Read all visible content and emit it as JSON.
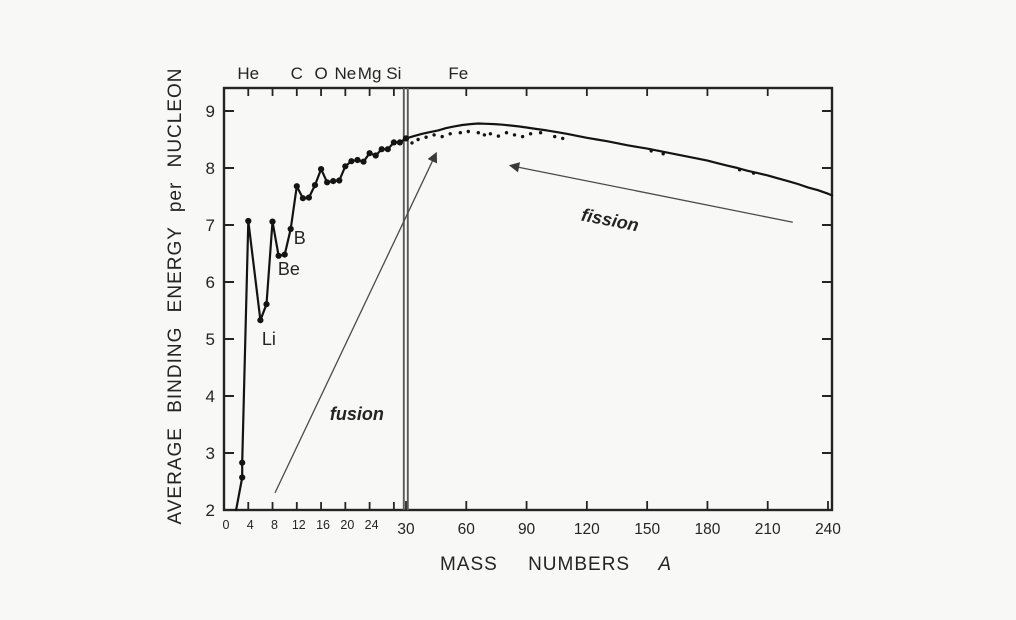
{
  "figure": {
    "background": "#f8f8f6",
    "ink": "#242424",
    "curve_color": "#141414",
    "arrow_color": "#4a4a4a",
    "break_line_color": "#5a5a5a"
  },
  "chart_data": {
    "type": "line",
    "title": "",
    "xlabel": "MASS NUMBERS A",
    "xlabel_words": {
      "w1": "MASS",
      "w2": "NUMBERS",
      "w3": "A"
    },
    "ylabel": "AVERAGE BINDING ENERGY per NUCLEON",
    "x_axis": {
      "scale": "segmented",
      "break_at": 30,
      "range": [
        0,
        240
      ],
      "left_segment": {
        "range": [
          0,
          30
        ],
        "labeled_ticks": [
          0,
          4,
          8,
          12,
          16,
          20,
          24
        ],
        "unlabeled_ticks": [
          28
        ]
      },
      "right_segment": {
        "range": [
          30,
          240
        ],
        "labeled_ticks": [
          30,
          60,
          90,
          120,
          150,
          180,
          210,
          240
        ]
      }
    },
    "y_axis": {
      "range": [
        2,
        9.4
      ],
      "ticks": [
        2,
        3,
        4,
        5,
        6,
        7,
        8,
        9
      ],
      "grid": false
    },
    "top_axis": {
      "ticks_left_segment": [
        4,
        8,
        12,
        16,
        20,
        24,
        28
      ],
      "ticks_right_segment": [
        60,
        90,
        120,
        150,
        180,
        210
      ],
      "element_labels": [
        {
          "symbol": "He",
          "A": 4
        },
        {
          "symbol": "C",
          "A": 12
        },
        {
          "symbol": "O",
          "A": 16
        },
        {
          "symbol": "Ne",
          "A": 20
        },
        {
          "symbol": "Mg",
          "A": 24
        },
        {
          "symbol": "Si",
          "A": 28
        },
        {
          "symbol": "Fe",
          "A": 56
        }
      ]
    },
    "series": [
      {
        "name": "light-nuclei",
        "markers": true,
        "points": [
          [
            2,
            2.0
          ],
          [
            3,
            2.57
          ],
          [
            3,
            2.83
          ],
          [
            4,
            7.07
          ],
          [
            6,
            5.33
          ],
          [
            7,
            5.61
          ],
          [
            8,
            7.06
          ],
          [
            9,
            6.46
          ],
          [
            10,
            6.48
          ],
          [
            11,
            6.93
          ],
          [
            12,
            7.68
          ],
          [
            13,
            7.47
          ],
          [
            14,
            7.48
          ],
          [
            15,
            7.7
          ],
          [
            16,
            7.98
          ],
          [
            17,
            7.75
          ],
          [
            18,
            7.77
          ],
          [
            19,
            7.78
          ],
          [
            20,
            8.03
          ],
          [
            21,
            8.12
          ],
          [
            22,
            8.14
          ],
          [
            23,
            8.11
          ],
          [
            24,
            8.26
          ],
          [
            25,
            8.22
          ],
          [
            26,
            8.33
          ],
          [
            27,
            8.33
          ],
          [
            28,
            8.45
          ],
          [
            29,
            8.45
          ],
          [
            30,
            8.52
          ]
        ]
      },
      {
        "name": "heavy-nuclei",
        "markers": false,
        "points": [
          [
            30,
            8.52
          ],
          [
            34,
            8.56
          ],
          [
            38,
            8.6
          ],
          [
            42,
            8.63
          ],
          [
            46,
            8.66
          ],
          [
            50,
            8.7
          ],
          [
            54,
            8.73
          ],
          [
            58,
            8.755
          ],
          [
            62,
            8.77
          ],
          [
            66,
            8.78
          ],
          [
            70,
            8.775
          ],
          [
            74,
            8.77
          ],
          [
            78,
            8.76
          ],
          [
            82,
            8.745
          ],
          [
            86,
            8.73
          ],
          [
            90,
            8.71
          ],
          [
            95,
            8.685
          ],
          [
            100,
            8.66
          ],
          [
            105,
            8.63
          ],
          [
            110,
            8.6
          ],
          [
            115,
            8.565
          ],
          [
            120,
            8.53
          ],
          [
            125,
            8.5
          ],
          [
            130,
            8.47
          ],
          [
            135,
            8.435
          ],
          [
            140,
            8.4
          ],
          [
            145,
            8.37
          ],
          [
            150,
            8.34
          ],
          [
            155,
            8.305
          ],
          [
            160,
            8.27
          ],
          [
            165,
            8.235
          ],
          [
            170,
            8.2
          ],
          [
            175,
            8.165
          ],
          [
            180,
            8.13
          ],
          [
            185,
            8.085
          ],
          [
            190,
            8.04
          ],
          [
            195,
            8.0
          ],
          [
            200,
            7.95
          ],
          [
            205,
            7.91
          ],
          [
            210,
            7.87
          ],
          [
            215,
            7.82
          ],
          [
            220,
            7.77
          ],
          [
            225,
            7.72
          ],
          [
            230,
            7.66
          ],
          [
            235,
            7.61
          ],
          [
            240,
            7.55
          ],
          [
            242,
            7.52
          ]
        ]
      }
    ],
    "scatter_points": [
      [
        33,
        8.44
      ],
      [
        36,
        8.5
      ],
      [
        40,
        8.54
      ],
      [
        44,
        8.58
      ],
      [
        48,
        8.55
      ],
      [
        52,
        8.6
      ],
      [
        57,
        8.62
      ],
      [
        61,
        8.64
      ],
      [
        66,
        8.62
      ],
      [
        69,
        8.58
      ],
      [
        72,
        8.6
      ],
      [
        76,
        8.56
      ],
      [
        80,
        8.62
      ],
      [
        84,
        8.58
      ],
      [
        88,
        8.55
      ],
      [
        92,
        8.6
      ],
      [
        97,
        8.62
      ],
      [
        104,
        8.55
      ],
      [
        108,
        8.52
      ],
      [
        152,
        8.3
      ],
      [
        158,
        8.25
      ],
      [
        196,
        7.97
      ],
      [
        203,
        7.91
      ]
    ],
    "annotations": [
      {
        "text": "Li",
        "A": 7.4,
        "E": 5.0,
        "style": "plain",
        "angle": 0
      },
      {
        "text": "Be",
        "A": 10.7,
        "E": 6.23,
        "style": "plain",
        "angle": 0
      },
      {
        "text": "B",
        "A": 12.5,
        "E": 6.77,
        "style": "plain",
        "angle": 0
      },
      {
        "text": "fusion",
        "A": 21.9,
        "E": 3.68,
        "style": "italic",
        "angle": 0
      },
      {
        "text": "fission",
        "A": 131.0,
        "E": 7.09,
        "style": "italic",
        "angle": 11
      }
    ],
    "arrows": [
      {
        "name": "fusion-arrow",
        "from": [
          8.4,
          2.3
        ],
        "to": [
          44.9,
          8.25
        ]
      },
      {
        "name": "fission-arrow",
        "from": [
          222.5,
          7.05
        ],
        "to": [
          82.2,
          8.04
        ]
      }
    ]
  }
}
